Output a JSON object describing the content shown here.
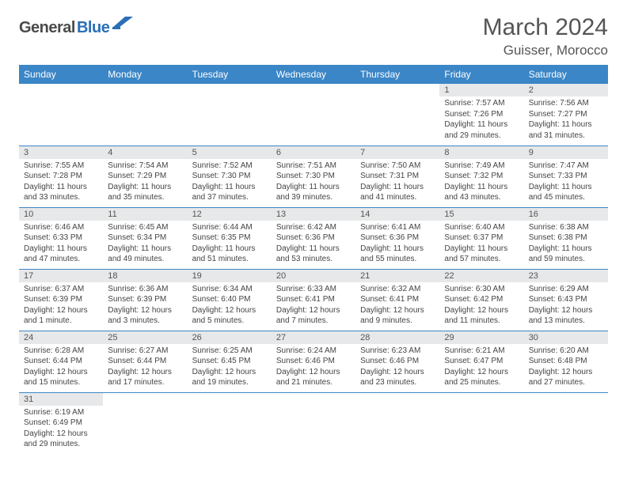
{
  "logo": {
    "part1": "General",
    "part2": "Blue"
  },
  "title": "March 2024",
  "location": "Guisser, Morocco",
  "colors": {
    "header_bg": "#3b86c7",
    "header_text": "#ffffff",
    "daynum_bg": "#e7e8e9",
    "daynum_text": "#545454",
    "cell_border": "#3b86c7",
    "body_text": "#444444",
    "title_text": "#555555",
    "logo_dark": "#4a4a4a",
    "logo_blue": "#2b6fb5"
  },
  "weekdays": [
    "Sunday",
    "Monday",
    "Tuesday",
    "Wednesday",
    "Thursday",
    "Friday",
    "Saturday"
  ],
  "weeks": [
    [
      null,
      null,
      null,
      null,
      null,
      {
        "n": "1",
        "sr": "Sunrise: 7:57 AM",
        "ss": "Sunset: 7:26 PM",
        "d1": "Daylight: 11 hours",
        "d2": "and 29 minutes."
      },
      {
        "n": "2",
        "sr": "Sunrise: 7:56 AM",
        "ss": "Sunset: 7:27 PM",
        "d1": "Daylight: 11 hours",
        "d2": "and 31 minutes."
      }
    ],
    [
      {
        "n": "3",
        "sr": "Sunrise: 7:55 AM",
        "ss": "Sunset: 7:28 PM",
        "d1": "Daylight: 11 hours",
        "d2": "and 33 minutes."
      },
      {
        "n": "4",
        "sr": "Sunrise: 7:54 AM",
        "ss": "Sunset: 7:29 PM",
        "d1": "Daylight: 11 hours",
        "d2": "and 35 minutes."
      },
      {
        "n": "5",
        "sr": "Sunrise: 7:52 AM",
        "ss": "Sunset: 7:30 PM",
        "d1": "Daylight: 11 hours",
        "d2": "and 37 minutes."
      },
      {
        "n": "6",
        "sr": "Sunrise: 7:51 AM",
        "ss": "Sunset: 7:30 PM",
        "d1": "Daylight: 11 hours",
        "d2": "and 39 minutes."
      },
      {
        "n": "7",
        "sr": "Sunrise: 7:50 AM",
        "ss": "Sunset: 7:31 PM",
        "d1": "Daylight: 11 hours",
        "d2": "and 41 minutes."
      },
      {
        "n": "8",
        "sr": "Sunrise: 7:49 AM",
        "ss": "Sunset: 7:32 PM",
        "d1": "Daylight: 11 hours",
        "d2": "and 43 minutes."
      },
      {
        "n": "9",
        "sr": "Sunrise: 7:47 AM",
        "ss": "Sunset: 7:33 PM",
        "d1": "Daylight: 11 hours",
        "d2": "and 45 minutes."
      }
    ],
    [
      {
        "n": "10",
        "sr": "Sunrise: 6:46 AM",
        "ss": "Sunset: 6:33 PM",
        "d1": "Daylight: 11 hours",
        "d2": "and 47 minutes."
      },
      {
        "n": "11",
        "sr": "Sunrise: 6:45 AM",
        "ss": "Sunset: 6:34 PM",
        "d1": "Daylight: 11 hours",
        "d2": "and 49 minutes."
      },
      {
        "n": "12",
        "sr": "Sunrise: 6:44 AM",
        "ss": "Sunset: 6:35 PM",
        "d1": "Daylight: 11 hours",
        "d2": "and 51 minutes."
      },
      {
        "n": "13",
        "sr": "Sunrise: 6:42 AM",
        "ss": "Sunset: 6:36 PM",
        "d1": "Daylight: 11 hours",
        "d2": "and 53 minutes."
      },
      {
        "n": "14",
        "sr": "Sunrise: 6:41 AM",
        "ss": "Sunset: 6:36 PM",
        "d1": "Daylight: 11 hours",
        "d2": "and 55 minutes."
      },
      {
        "n": "15",
        "sr": "Sunrise: 6:40 AM",
        "ss": "Sunset: 6:37 PM",
        "d1": "Daylight: 11 hours",
        "d2": "and 57 minutes."
      },
      {
        "n": "16",
        "sr": "Sunrise: 6:38 AM",
        "ss": "Sunset: 6:38 PM",
        "d1": "Daylight: 11 hours",
        "d2": "and 59 minutes."
      }
    ],
    [
      {
        "n": "17",
        "sr": "Sunrise: 6:37 AM",
        "ss": "Sunset: 6:39 PM",
        "d1": "Daylight: 12 hours",
        "d2": "and 1 minute."
      },
      {
        "n": "18",
        "sr": "Sunrise: 6:36 AM",
        "ss": "Sunset: 6:39 PM",
        "d1": "Daylight: 12 hours",
        "d2": "and 3 minutes."
      },
      {
        "n": "19",
        "sr": "Sunrise: 6:34 AM",
        "ss": "Sunset: 6:40 PM",
        "d1": "Daylight: 12 hours",
        "d2": "and 5 minutes."
      },
      {
        "n": "20",
        "sr": "Sunrise: 6:33 AM",
        "ss": "Sunset: 6:41 PM",
        "d1": "Daylight: 12 hours",
        "d2": "and 7 minutes."
      },
      {
        "n": "21",
        "sr": "Sunrise: 6:32 AM",
        "ss": "Sunset: 6:41 PM",
        "d1": "Daylight: 12 hours",
        "d2": "and 9 minutes."
      },
      {
        "n": "22",
        "sr": "Sunrise: 6:30 AM",
        "ss": "Sunset: 6:42 PM",
        "d1": "Daylight: 12 hours",
        "d2": "and 11 minutes."
      },
      {
        "n": "23",
        "sr": "Sunrise: 6:29 AM",
        "ss": "Sunset: 6:43 PM",
        "d1": "Daylight: 12 hours",
        "d2": "and 13 minutes."
      }
    ],
    [
      {
        "n": "24",
        "sr": "Sunrise: 6:28 AM",
        "ss": "Sunset: 6:44 PM",
        "d1": "Daylight: 12 hours",
        "d2": "and 15 minutes."
      },
      {
        "n": "25",
        "sr": "Sunrise: 6:27 AM",
        "ss": "Sunset: 6:44 PM",
        "d1": "Daylight: 12 hours",
        "d2": "and 17 minutes."
      },
      {
        "n": "26",
        "sr": "Sunrise: 6:25 AM",
        "ss": "Sunset: 6:45 PM",
        "d1": "Daylight: 12 hours",
        "d2": "and 19 minutes."
      },
      {
        "n": "27",
        "sr": "Sunrise: 6:24 AM",
        "ss": "Sunset: 6:46 PM",
        "d1": "Daylight: 12 hours",
        "d2": "and 21 minutes."
      },
      {
        "n": "28",
        "sr": "Sunrise: 6:23 AM",
        "ss": "Sunset: 6:46 PM",
        "d1": "Daylight: 12 hours",
        "d2": "and 23 minutes."
      },
      {
        "n": "29",
        "sr": "Sunrise: 6:21 AM",
        "ss": "Sunset: 6:47 PM",
        "d1": "Daylight: 12 hours",
        "d2": "and 25 minutes."
      },
      {
        "n": "30",
        "sr": "Sunrise: 6:20 AM",
        "ss": "Sunset: 6:48 PM",
        "d1": "Daylight: 12 hours",
        "d2": "and 27 minutes."
      }
    ],
    [
      {
        "n": "31",
        "sr": "Sunrise: 6:19 AM",
        "ss": "Sunset: 6:49 PM",
        "d1": "Daylight: 12 hours",
        "d2": "and 29 minutes."
      },
      null,
      null,
      null,
      null,
      null,
      null
    ]
  ]
}
